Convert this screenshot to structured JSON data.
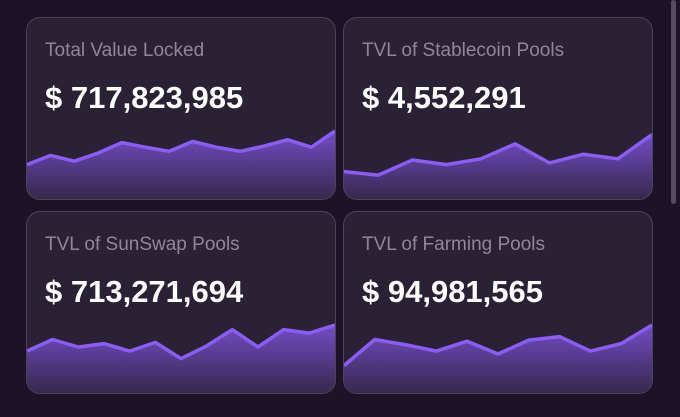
{
  "colors": {
    "accent": "#8b5cf6",
    "card_bg": "#2a2135",
    "page_bg": "#1c1329"
  },
  "cards": [
    {
      "title": "Total Value Locked",
      "value": "$ 717,823,985",
      "trend": [
        0.42,
        0.58,
        0.48,
        0.62,
        0.8,
        0.72,
        0.65,
        0.82,
        0.72,
        0.65,
        0.74,
        0.85,
        0.72,
        1.0
      ]
    },
    {
      "title": "TVL of Stablecoin Pools",
      "value": "$ 4,552,291",
      "trend": [
        0.3,
        0.24,
        0.5,
        0.42,
        0.52,
        0.78,
        0.45,
        0.6,
        0.52,
        0.94
      ]
    },
    {
      "title": "TVL of SunSwap Pools",
      "value": "$ 713,271,694",
      "trend": [
        0.55,
        0.75,
        0.62,
        0.68,
        0.55,
        0.7,
        0.42,
        0.64,
        0.92,
        0.62,
        0.92,
        0.86,
        1.0
      ]
    },
    {
      "title": "TVL of Farming Pools",
      "value": "$ 94,981,565",
      "trend": [
        0.3,
        0.75,
        0.66,
        0.55,
        0.72,
        0.5,
        0.74,
        0.8,
        0.55,
        0.68,
        1.0
      ]
    }
  ]
}
